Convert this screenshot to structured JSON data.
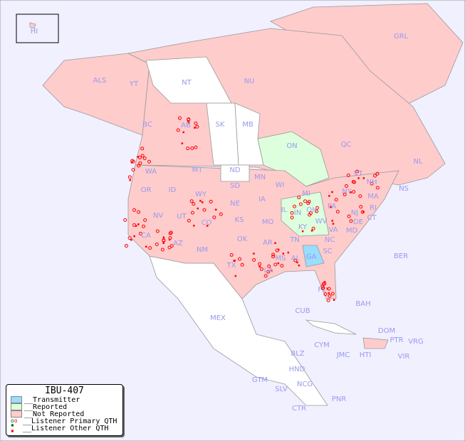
{
  "legend": {
    "title": "IBU-407",
    "items": [
      {
        "label": "__Transmitter",
        "color": "#99ddff"
      },
      {
        "label": "__Reported",
        "color": "#ddffdd"
      },
      {
        "label": "__Not Reported",
        "color": "#ffcccc"
      },
      {
        "label": "__Listener Primary QTH",
        "marker": "open-circle",
        "colors": [
          "#006600",
          "#ff0000"
        ]
      },
      {
        "label": "__Listener Other QTH",
        "marker": "square",
        "colors": [
          "#006600",
          "#ff0000"
        ]
      }
    ]
  },
  "colors": {
    "ocean": "#f0f0ff",
    "not_reported": "#ffcccc",
    "reported": "#ddffdd",
    "transmitter": "#99ddff",
    "unlisted": "#ffffff",
    "label": "#9999ee",
    "marker": "#ff0000"
  },
  "regions": [
    "HI",
    "ALS",
    "YT",
    "NT",
    "NU",
    "GRL",
    "BC",
    "AB",
    "SK",
    "MB",
    "ON",
    "QC",
    "NL",
    "NS",
    "WA",
    "OR",
    "ID",
    "MT",
    "ND",
    "SD",
    "MN",
    "WI",
    "MI",
    "NY",
    "VT",
    "NH",
    "MA",
    "RI",
    "CT",
    "NJ",
    "PA",
    "OH",
    "IN",
    "IL",
    "IA",
    "NE",
    "WY",
    "NV",
    "CA",
    "UT",
    "CO",
    "KS",
    "MO",
    "KY",
    "WV",
    "VA",
    "MD",
    "DE",
    "NC",
    "TN",
    "OK",
    "AR",
    "MS",
    "AL",
    "GA",
    "SC",
    "AZ",
    "NM",
    "TX",
    "LA",
    "FL",
    "BER",
    "BAH",
    "CUB",
    "MEX",
    "DOM",
    "PTR",
    "VRG",
    "CYM",
    "JMC",
    "HTI",
    "VIR",
    "BLZ",
    "HND",
    "GTM",
    "SLV",
    "NCG",
    "CTR",
    "PNR"
  ]
}
